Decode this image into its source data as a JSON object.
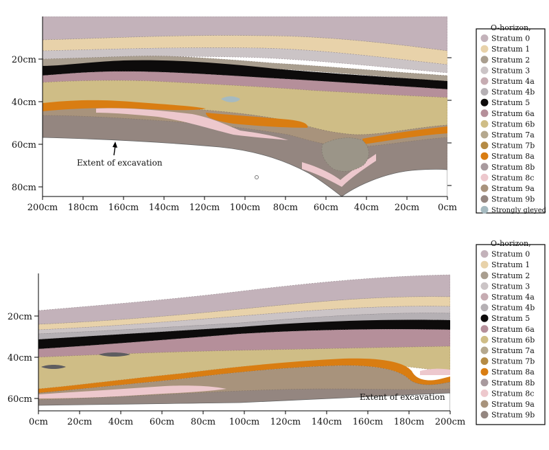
{
  "colors": {
    "o_horizon": "#c3b2ba",
    "stratum_0": "#e5cfa8",
    "stratum_1": "#e8d2aa",
    "stratum_2": "#a99e8f",
    "stratum_3": "#cbc4c6",
    "stratum_4a": "#c6acb2",
    "stratum_4b": "#b5b0b4",
    "stratum_5": "#0d0b0b",
    "stratum_6a": "#b58f9a",
    "stratum_6b": "#cfbd86",
    "stratum_7a": "#b5a88e",
    "stratum_7b": "#b58b45",
    "stratum_8a": "#d97d12",
    "stratum_8b": "#a89a9e",
    "stratum_8c": "#edc8cd",
    "stratum_9a": "#a8937c",
    "stratum_9b": "#948680",
    "strongly_gleyed": "#a6bac0"
  },
  "top_panel": {
    "y_ticks": [
      "20cm",
      "40cm",
      "60cm",
      "80cm"
    ],
    "x_ticks": [
      "200cm",
      "180cm",
      "160cm",
      "140cm",
      "120cm",
      "100cm",
      "80cm",
      "60cm",
      "40cm",
      "20cm",
      "0cm"
    ],
    "annotation": "Extent of excavation",
    "legend": [
      {
        "label": "O-horizon,",
        "color": "o_horizon",
        "marker": false
      },
      {
        "label": "Stratum 0",
        "color": "o_horizon",
        "marker": true
      },
      {
        "label": "Stratum 1",
        "color": "stratum_1",
        "marker": true
      },
      {
        "label": "Stratum 2",
        "color": "stratum_2",
        "marker": true
      },
      {
        "label": "Stratum 3",
        "color": "stratum_3",
        "marker": true
      },
      {
        "label": "Stratum 4a",
        "color": "stratum_4a",
        "marker": true
      },
      {
        "label": "Stratum 4b",
        "color": "stratum_4b",
        "marker": true
      },
      {
        "label": "Stratum 5",
        "color": "stratum_5",
        "marker": true
      },
      {
        "label": "Stratum 6a",
        "color": "stratum_6a",
        "marker": true
      },
      {
        "label": "Stratum 6b",
        "color": "stratum_6b",
        "marker": true
      },
      {
        "label": "Stratum 7a",
        "color": "stratum_7a",
        "marker": true
      },
      {
        "label": "Stratum 7b",
        "color": "stratum_7b",
        "marker": true
      },
      {
        "label": "Stratum 8a",
        "color": "stratum_8a",
        "marker": true
      },
      {
        "label": "Stratum 8b",
        "color": "stratum_8b",
        "marker": true
      },
      {
        "label": "Stratum 8c",
        "color": "stratum_8c",
        "marker": true
      },
      {
        "label": "Stratum 9a",
        "color": "stratum_9a",
        "marker": true
      },
      {
        "label": "Stratum 9b",
        "color": "stratum_9b",
        "marker": true
      },
      {
        "label": "Strongly gleyed",
        "color": "strongly_gleyed",
        "marker": true
      }
    ]
  },
  "bottom_panel": {
    "y_ticks": [
      "20cm",
      "40cm",
      "60cm"
    ],
    "x_ticks": [
      "0cm",
      "20cm",
      "40cm",
      "60cm",
      "80cm",
      "100cm",
      "120cm",
      "140cm",
      "160cm",
      "180cm",
      "200cm"
    ],
    "annotation": "Extent of excavation",
    "legend": [
      {
        "label": "O-horizon,",
        "color": "o_horizon",
        "marker": false
      },
      {
        "label": "Stratum 0",
        "color": "o_horizon",
        "marker": true
      },
      {
        "label": "Stratum 1",
        "color": "stratum_1",
        "marker": true
      },
      {
        "label": "Stratum 2",
        "color": "stratum_2",
        "marker": true
      },
      {
        "label": "Stratum 3",
        "color": "stratum_3",
        "marker": true
      },
      {
        "label": "Stratum 4a",
        "color": "stratum_4a",
        "marker": true
      },
      {
        "label": "Stratum 4b",
        "color": "stratum_4b",
        "marker": true
      },
      {
        "label": "Stratum 5",
        "color": "stratum_5",
        "marker": true
      },
      {
        "label": "Stratum 6a",
        "color": "stratum_6a",
        "marker": true
      },
      {
        "label": "Stratum 6b",
        "color": "stratum_6b",
        "marker": true
      },
      {
        "label": "Stratum 7a",
        "color": "stratum_7a",
        "marker": true
      },
      {
        "label": "Stratum 7b",
        "color": "stratum_7b",
        "marker": true
      },
      {
        "label": "Stratum 8a",
        "color": "stratum_8a",
        "marker": true
      },
      {
        "label": "Stratum 8b",
        "color": "stratum_8b",
        "marker": true
      },
      {
        "label": "Stratum 8c",
        "color": "stratum_8c",
        "marker": true
      },
      {
        "label": "Stratum 9a",
        "color": "stratum_9a",
        "marker": true
      },
      {
        "label": "Stratum 9b",
        "color": "stratum_9b",
        "marker": true
      }
    ]
  }
}
